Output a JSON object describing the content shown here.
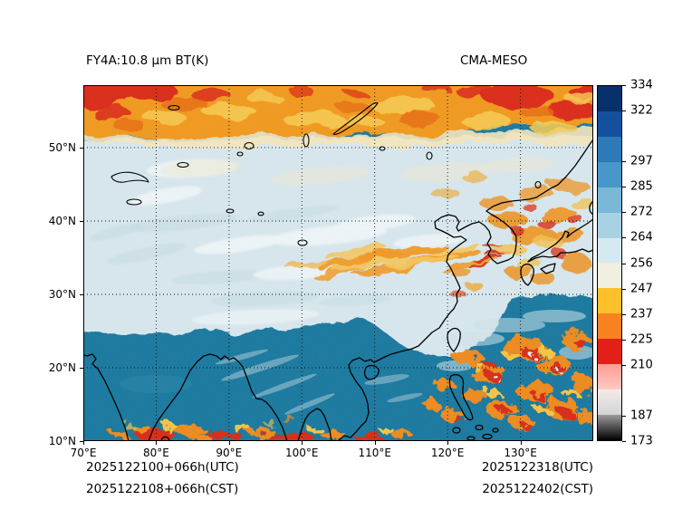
{
  "titles": {
    "left": "FY4A:10.8 μm BT(K)",
    "right": "CMA-MESO"
  },
  "footer": {
    "left_line1": "2025122100+066h(UTC)",
    "left_line2": "2025122108+066h(CST)",
    "right_line1": "2025122318(UTC)",
    "right_line2": "2025122402(CST)"
  },
  "colorbar": {
    "n_segments": 14,
    "segment_colors": [
      "#08306b",
      "#15509e",
      "#2c7bb6",
      "#4897c9",
      "#7ab8d7",
      "#a8d2e3",
      "#d5e9f0",
      "#f0efe0",
      "#fdc02a",
      "#f8821f",
      "#e32017",
      [
        "#ff9d94",
        "#ffc9c2"
      ],
      [
        "#f2ecea",
        "#d4d4d4"
      ],
      [
        "#9b9b9b",
        "#000000"
      ]
    ],
    "ticks": [
      {
        "label": "334",
        "pos": 0
      },
      {
        "label": "322",
        "pos": 1
      },
      {
        "label": "297",
        "pos": 3
      },
      {
        "label": "285",
        "pos": 4
      },
      {
        "label": "272",
        "pos": 5
      },
      {
        "label": "264",
        "pos": 6
      },
      {
        "label": "256",
        "pos": 7
      },
      {
        "label": "247",
        "pos": 8
      },
      {
        "label": "237",
        "pos": 9
      },
      {
        "label": "225",
        "pos": 10
      },
      {
        "label": "210",
        "pos": 11
      },
      {
        "label": "187",
        "pos": 13
      },
      {
        "label": "173",
        "pos": 14
      }
    ]
  },
  "chart_data": {
    "type": "heatmap",
    "title": "FY4A:10.8 μm BT(K)",
    "model": "CMA-MESO",
    "unit": "K",
    "x_axis": {
      "ticks": [
        "70°E",
        "80°E",
        "90°E",
        "100°E",
        "110°E",
        "120°E",
        "130°E"
      ],
      "range": [
        70,
        140
      ]
    },
    "y_axis": {
      "ticks": [
        "50°N",
        "40°N",
        "30°N",
        "20°N",
        "10°N"
      ],
      "range": [
        10,
        58.5
      ]
    },
    "colorbar_tick_values": [
      334,
      322,
      297,
      285,
      272,
      264,
      256,
      247,
      237,
      225,
      210,
      187,
      173
    ],
    "grid": true,
    "legend_position": "right-colorbar",
    "time_labels": {
      "init_utc": "2025122100+066h(UTC)",
      "init_cst": "2025122108+066h(CST)",
      "valid_utc": "2025122318(UTC)",
      "valid_cst": "2025122402(CST)"
    },
    "approx_field_K": {
      "description": "Coarse brightness-temperature values (K) read from map colors; rows are latitude bands, columns are longitude centers",
      "lon_centers": [
        75,
        85,
        95,
        105,
        115,
        125,
        135
      ],
      "rows": [
        {
          "lat": 55,
          "values": [
            238,
            244,
            247,
            243,
            240,
            242,
            232
          ]
        },
        {
          "lat": 45,
          "values": [
            256,
            259,
            261,
            258,
            255,
            251,
            246
          ]
        },
        {
          "lat": 35,
          "values": [
            262,
            261,
            257,
            251,
            248,
            253,
            247
          ]
        },
        {
          "lat": 25,
          "values": [
            283,
            280,
            276,
            268,
            258,
            247,
            243
          ]
        },
        {
          "lat": 15,
          "values": [
            290,
            291,
            287,
            283,
            278,
            252,
            249
          ]
        }
      ]
    }
  }
}
